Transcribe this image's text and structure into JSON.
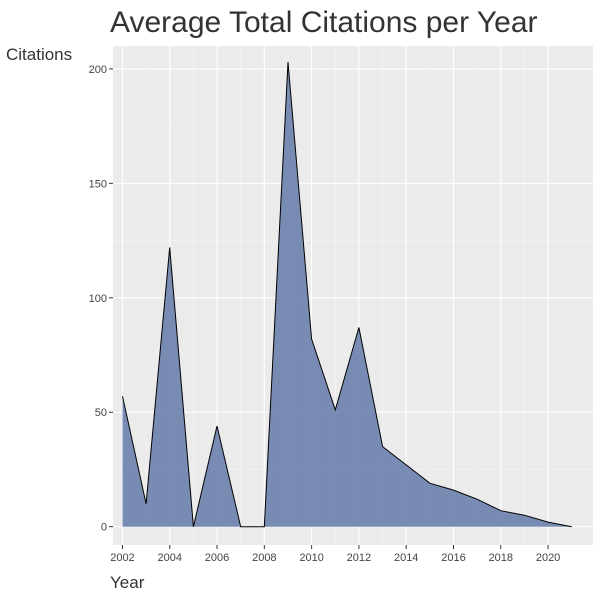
{
  "chart_data": {
    "type": "area",
    "title": "Average Total Citations per Year",
    "xlabel": "Year",
    "ylabel": "Citations",
    "x": [
      2002,
      2003,
      2004,
      2005,
      2006,
      2007,
      2008,
      2009,
      2010,
      2011,
      2012,
      2013,
      2014,
      2015,
      2016,
      2017,
      2018,
      2019,
      2020,
      2021
    ],
    "values": [
      57,
      10,
      122,
      0,
      44,
      0,
      0,
      203,
      82,
      51,
      87,
      35,
      27,
      19,
      16,
      12,
      7,
      5,
      2,
      0
    ],
    "xlim": [
      2001.6,
      2021.9
    ],
    "ylim": [
      -8,
      210
    ],
    "xticks": [
      2002,
      2004,
      2006,
      2008,
      2010,
      2012,
      2014,
      2016,
      2018,
      2020
    ],
    "xtick_labels": [
      "2002",
      "2004",
      "2006",
      "2008",
      "2010",
      "2012",
      "2014",
      "2016",
      "2018",
      "2020"
    ],
    "yticks": [
      0,
      50,
      100,
      150,
      200
    ],
    "ytick_labels": [
      "0",
      "50",
      "100",
      "150",
      "200"
    ],
    "grid": true,
    "legend": "none",
    "colors": {
      "fill": "#6b82ad",
      "line": "#000000",
      "panel": "#ebebeb",
      "grid_major": "#ffffff",
      "grid_minor": "#f5f5f5"
    }
  }
}
